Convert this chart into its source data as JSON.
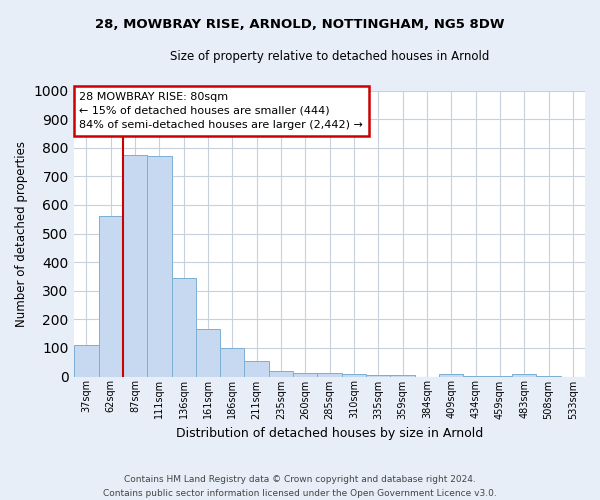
{
  "title1": "28, MOWBRAY RISE, ARNOLD, NOTTINGHAM, NG5 8DW",
  "title2": "Size of property relative to detached houses in Arnold",
  "xlabel": "Distribution of detached houses by size in Arnold",
  "ylabel": "Number of detached properties",
  "categories": [
    "37sqm",
    "62sqm",
    "87sqm",
    "111sqm",
    "136sqm",
    "161sqm",
    "186sqm",
    "211sqm",
    "235sqm",
    "260sqm",
    "285sqm",
    "310sqm",
    "335sqm",
    "359sqm",
    "384sqm",
    "409sqm",
    "434sqm",
    "459sqm",
    "483sqm",
    "508sqm",
    "533sqm"
  ],
  "values": [
    110,
    560,
    775,
    770,
    345,
    165,
    98,
    55,
    20,
    13,
    12,
    8,
    5,
    4,
    0,
    8,
    3,
    3,
    10,
    3,
    0
  ],
  "bar_color": "#c6d9f0",
  "bar_edge_color": "#7bafd4",
  "vline_color": "#cc0000",
  "ylim": [
    0,
    1000
  ],
  "yticks": [
    0,
    100,
    200,
    300,
    400,
    500,
    600,
    700,
    800,
    900,
    1000
  ],
  "annotation_title": "28 MOWBRAY RISE: 80sqm",
  "annotation_line1": "← 15% of detached houses are smaller (444)",
  "annotation_line2": "84% of semi-detached houses are larger (2,442) →",
  "annotation_box_color": "#ffffff",
  "annotation_box_edge_color": "#cc0000",
  "footer1": "Contains HM Land Registry data © Crown copyright and database right 2024.",
  "footer2": "Contains public sector information licensed under the Open Government Licence v3.0.",
  "bg_color": "#e8eef7",
  "plot_bg_color": "#ffffff",
  "grid_color": "#c8d0dc"
}
